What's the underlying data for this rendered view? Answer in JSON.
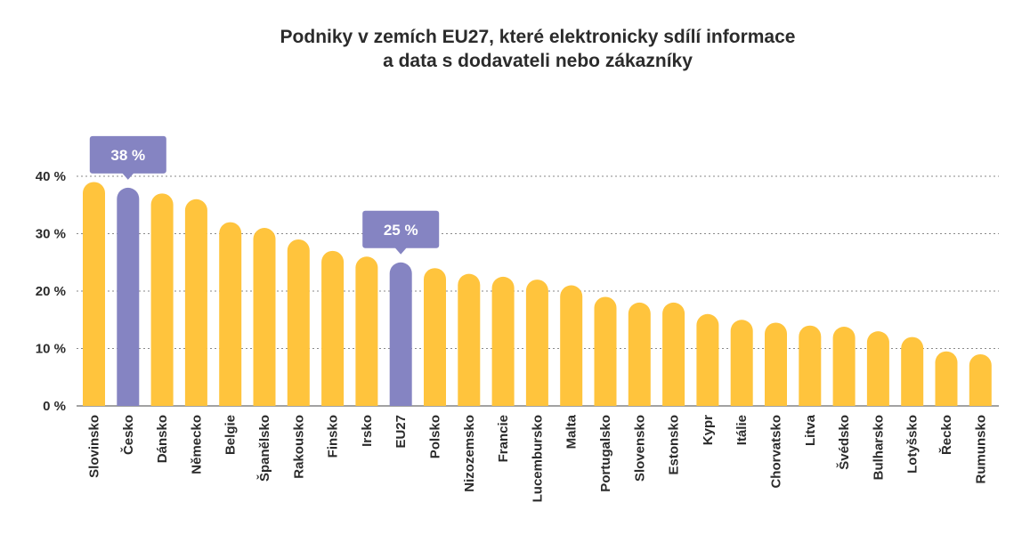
{
  "chart_data": {
    "type": "bar",
    "title": [
      "Podniky v zemích EU27, které elektronicky sdílí informace",
      "a data s dodavateli nebo zákazníky"
    ],
    "categories": [
      "Slovinsko",
      "Česko",
      "Dánsko",
      "Německo",
      "Belgie",
      "Španělsko",
      "Rakousko",
      "Finsko",
      "Irsko",
      "EU27",
      "Polsko",
      "Nizozemsko",
      "Francie",
      "Lucembursko",
      "Malta",
      "Portugalsko",
      "Slovensko",
      "Estonsko",
      "Kypr",
      "Itálie",
      "Chorvatsko",
      "Litva",
      "Švédsko",
      "Bulharsko",
      "Lotyšsko",
      "Řecko",
      "Rumunsko"
    ],
    "values": [
      39,
      38,
      37,
      36,
      32,
      31,
      29,
      27,
      26,
      25,
      24,
      23,
      22.5,
      22,
      21,
      19,
      18,
      18,
      16,
      15,
      14.5,
      14,
      13.8,
      13,
      12,
      9.5,
      9
    ],
    "highlight": [
      "Česko",
      "EU27"
    ],
    "callouts": [
      {
        "category": "Česko",
        "label": "38 %"
      },
      {
        "category": "EU27",
        "label": "25 %"
      }
    ],
    "yticks": [
      "0 %",
      "10 %",
      "20 %",
      "30 %",
      "40 %"
    ],
    "ytick_values": [
      0,
      10,
      20,
      30,
      40
    ],
    "ylim": [
      0,
      40
    ],
    "grid": true,
    "colors": {
      "bar": "#FFC43D",
      "highlight": "#8584C2",
      "callout": "#8584C2"
    }
  }
}
